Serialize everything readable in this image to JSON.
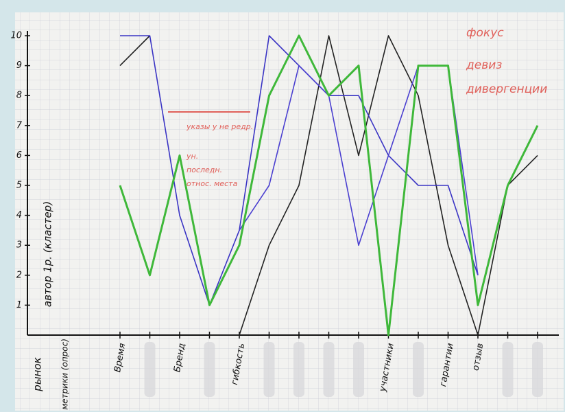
{
  "chart_data": {
    "type": "line",
    "axis_note": "автор 1р. (кластер)",
    "row_headers": [
      "рынок",
      "метрики (опрос)"
    ],
    "categories": [
      "Время",
      null,
      "Бренд",
      null,
      "гибкость",
      null,
      null,
      null,
      null,
      "участники",
      null,
      "гарантии",
      "отзыв",
      null,
      null
    ],
    "series": [
      {
        "color": "#222222",
        "values": [
          9,
          10,
          null,
          0,
          0,
          3,
          5,
          10,
          6,
          10,
          8,
          3,
          0,
          5,
          6
        ]
      },
      {
        "color": "#3a34c4",
        "values": [
          10,
          10,
          4,
          1,
          3.5,
          10,
          9,
          8,
          8,
          6,
          5,
          5,
          2,
          null,
          null
        ]
      },
      {
        "color": "#4a3fd0",
        "values": [
          null,
          null,
          null,
          null,
          3.5,
          5,
          9,
          8,
          3,
          6,
          9,
          9,
          2,
          null,
          null
        ]
      },
      {
        "color": "#3fb83a",
        "values": [
          5,
          2,
          6,
          1,
          3,
          8,
          10,
          8,
          9,
          0,
          9,
          9,
          1,
          5,
          7
        ]
      }
    ],
    "annotations": [
      "фокус",
      "девиз",
      "дивергенции",
      "указы у не редр.",
      "ун.",
      "последн.",
      "относ. места"
    ],
    "ylim": [
      0,
      10
    ],
    "yticks": [
      1,
      2,
      3,
      4,
      5,
      6,
      7,
      8,
      9,
      10
    ],
    "grid": true
  }
}
